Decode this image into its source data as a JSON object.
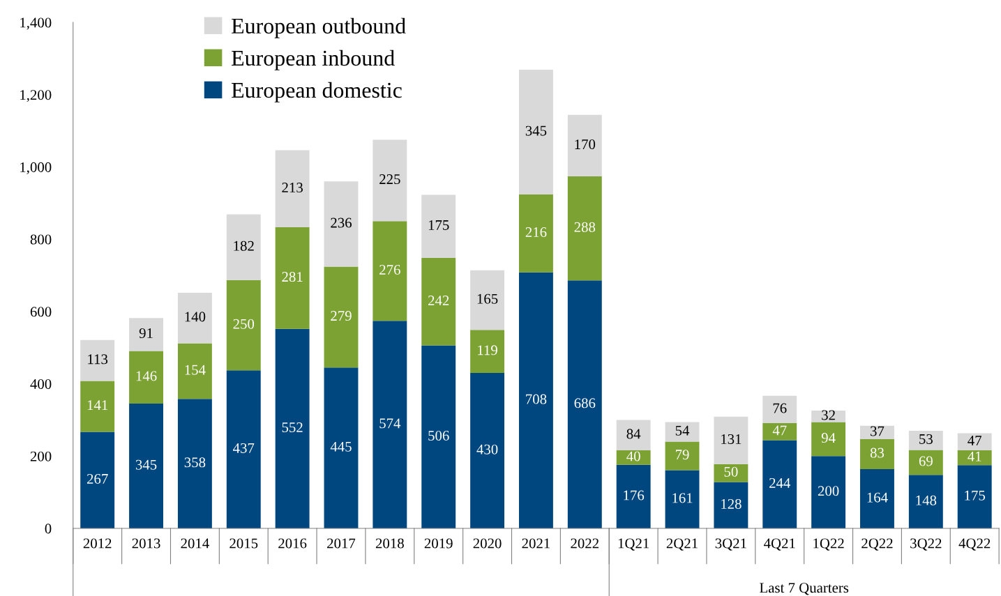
{
  "chart_data": {
    "type": "bar",
    "stacked": true,
    "data_labels": true,
    "legend": "top left",
    "categories": [
      "2012",
      "2013",
      "2014",
      "2015",
      "2016",
      "2017",
      "2018",
      "2019",
      "2020",
      "2021",
      "2022",
      "1Q21",
      "2Q21",
      "3Q21",
      "4Q21",
      "1Q22",
      "2Q22",
      "3Q22",
      "4Q22"
    ],
    "series": [
      {
        "name": "European domestic",
        "color": "#00467f",
        "values": [
          267,
          345,
          358,
          437,
          552,
          445,
          574,
          506,
          430,
          708,
          686,
          176,
          161,
          128,
          244,
          200,
          164,
          148,
          175
        ]
      },
      {
        "name": "European inbound",
        "color": "#7ba232",
        "values": [
          141,
          146,
          154,
          250,
          281,
          279,
          276,
          242,
          119,
          216,
          288,
          40,
          79,
          50,
          47,
          94,
          83,
          69,
          41
        ]
      },
      {
        "name": "European outbound",
        "color": "#d9d9d9",
        "values": [
          113,
          91,
          140,
          182,
          213,
          236,
          225,
          175,
          165,
          345,
          170,
          84,
          54,
          131,
          76,
          32,
          37,
          53,
          47
        ]
      }
    ],
    "ylim": [
      0,
      1400
    ],
    "yticks": [
      0,
      {
        "value": 200,
        "label": "200"
      },
      {
        "value": 400,
        "label": "400"
      },
      {
        "value": 600,
        "label": "600"
      },
      {
        "value": 800,
        "label": "800"
      },
      {
        "value": 1000,
        "label": "1,000"
      },
      {
        "value": 1200,
        "label": "1,200"
      },
      {
        "value": 1400,
        "label": "1,400"
      }
    ],
    "annotations": [
      "Last 7 Quarters"
    ]
  }
}
